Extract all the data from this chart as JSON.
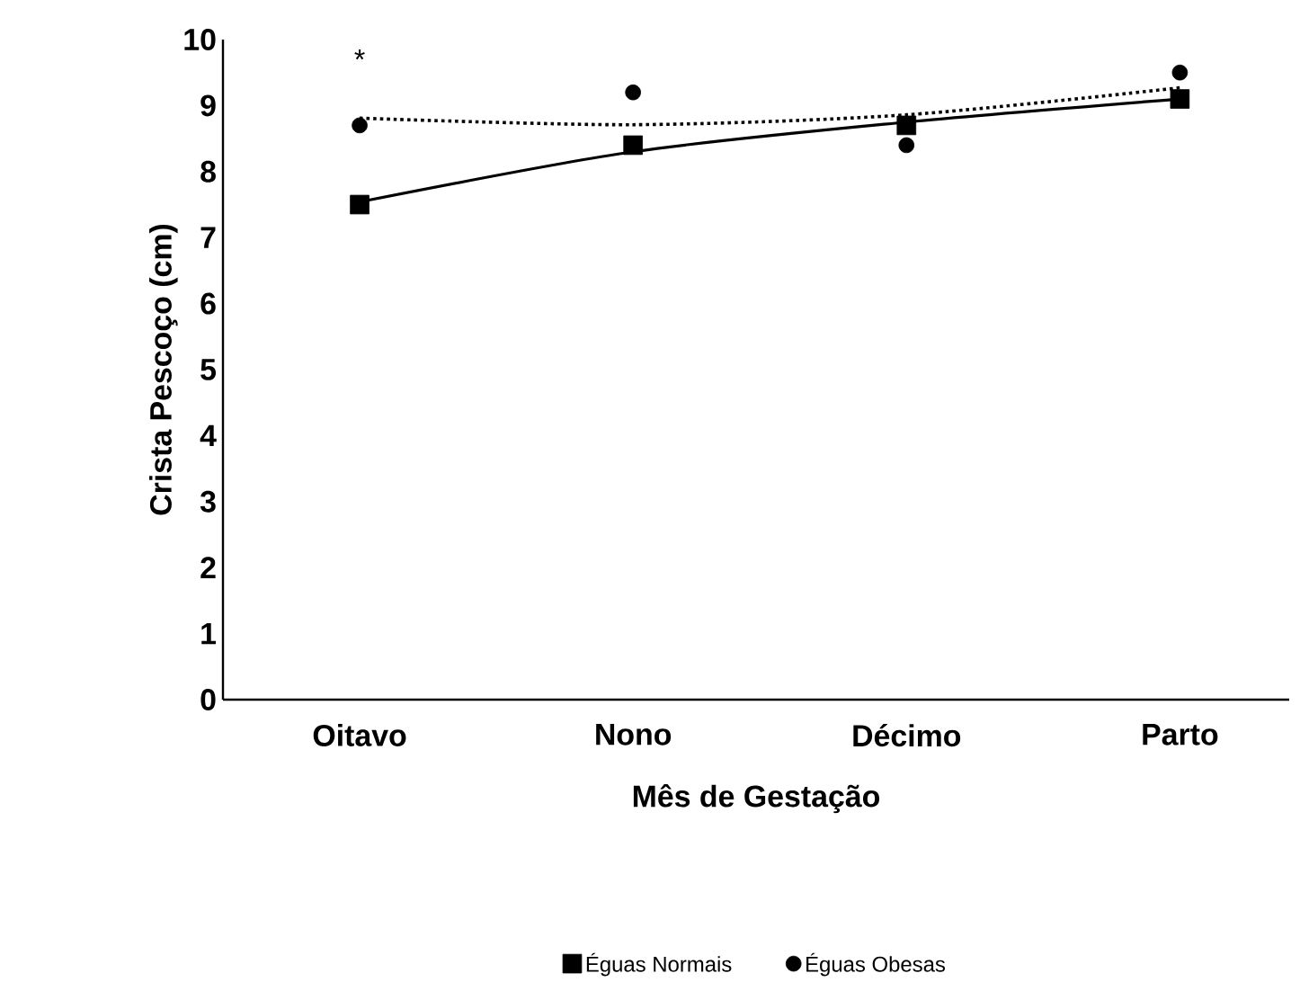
{
  "chart_data": {
    "type": "scatter",
    "xlabel": "Mês de Gestação",
    "ylabel": "Crista Pescoço (cm)",
    "categories": [
      "Oitavo",
      "Nono",
      "Décimo",
      "Parto"
    ],
    "series": [
      {
        "name": "Éguas Normais",
        "color": "#000000",
        "marker": "square",
        "values": [
          7.5,
          8.4,
          8.7,
          9.1
        ]
      },
      {
        "name": "Éguas Obesas",
        "color": "#000000",
        "marker": "circle",
        "values": [
          8.7,
          9.2,
          8.4,
          9.5
        ]
      },
      {
        "color": "#000000",
        "type": "line",
        "line_style": "solid",
        "values": [
          7.54,
          8.3,
          8.75,
          9.1
        ]
      },
      {
        "color": "#000000",
        "type": "line",
        "line_style": "dotted",
        "values": [
          8.81,
          8.71,
          8.86,
          9.27
        ]
      }
    ],
    "annotations": [
      "*"
    ],
    "ylim": [
      0,
      10
    ],
    "yticks": [
      0,
      1,
      2,
      3,
      4,
      5,
      6,
      7,
      8,
      9,
      10
    ],
    "grid": false,
    "legend": "bottom"
  }
}
